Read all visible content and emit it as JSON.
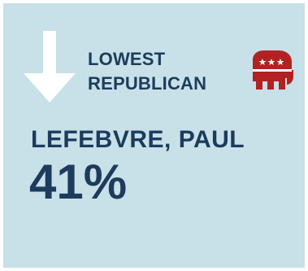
{
  "header": {
    "line1": "LOWEST",
    "line2": "REPUBLICAN"
  },
  "candidate": {
    "name": "LEFEBVRE, PAUL",
    "percent": "41%"
  },
  "icons": {
    "direction": "down-arrow-icon",
    "party": "republican-elephant-icon"
  },
  "colors": {
    "background": "#c8e0e8",
    "text": "#1d3b5c",
    "arrow": "#ffffff",
    "party": "#b22222"
  }
}
